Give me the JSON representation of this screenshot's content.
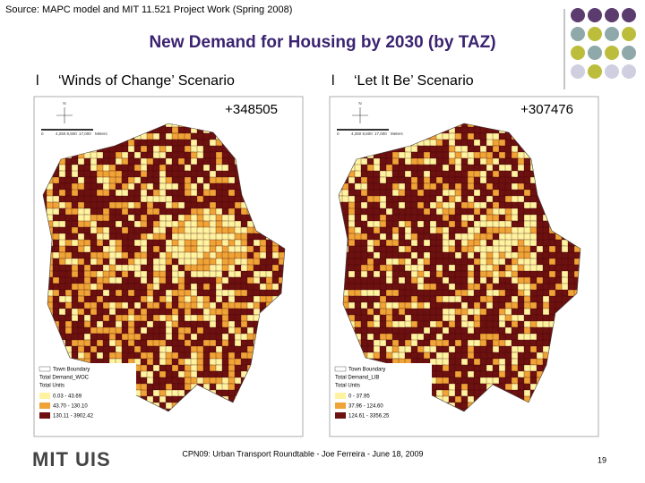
{
  "header": {
    "source": "Source: MAPC model and MIT 11.521 Project Work (Spring 2008)",
    "title": "New Demand for Housing by 2030 (by TAZ)"
  },
  "maps": [
    {
      "heading": "‘Winds of Change’ Scenario",
      "total": "+348505",
      "north": "N",
      "scale": [
        "0",
        "4,250 8,500",
        "17,000",
        "Meters"
      ],
      "legend": {
        "boundary": "Town Boundary",
        "layer": "Total Demand_WOC",
        "field": "Total Units",
        "classes": [
          "0.03 - 43.69",
          "43.70 - 130.10",
          "130.11 - 3902.42"
        ]
      }
    },
    {
      "heading": "‘Let It Be’ Scenario",
      "total": "+307476",
      "north": "N",
      "scale": [
        "0",
        "4,250 8,500",
        "17,000",
        "Meters"
      ],
      "legend": {
        "boundary": "Town Boundary",
        "layer": "Total Demand_LIB",
        "field": "Total Units",
        "classes": [
          "0 - 37.95",
          "37.96 - 124.60",
          "124.61 - 3356.25"
        ]
      }
    }
  ],
  "footer": {
    "logo": "MIT UIS",
    "text": "CPN09: Urban Transport Roundtable  - Joe Ferreira - June 18, 2009",
    "page": "19"
  }
}
